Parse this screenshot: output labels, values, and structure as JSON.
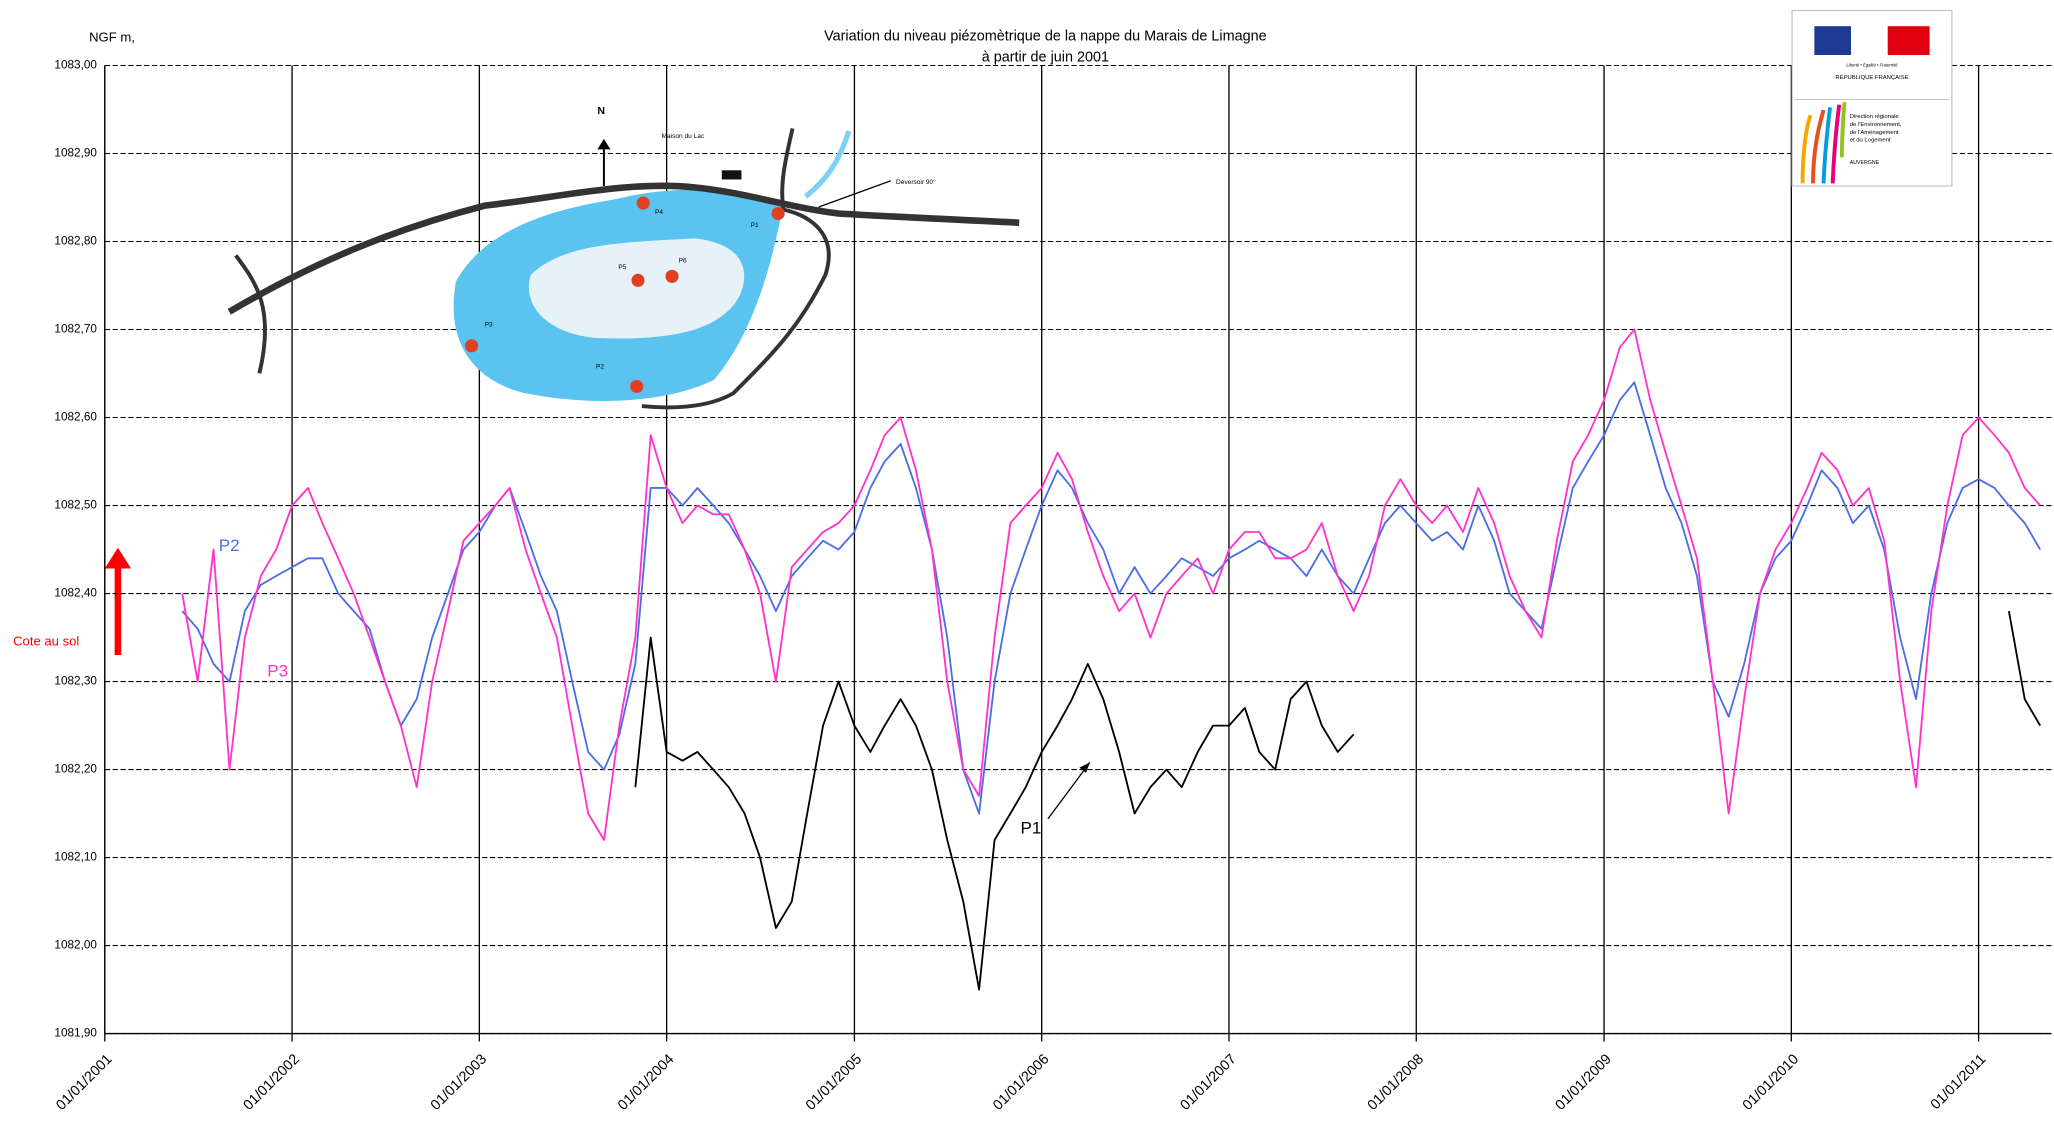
{
  "chart_data": {
    "type": "line",
    "title": "Variation du niveau  piézomètrique de la nappe du Marais de Limagne",
    "subtitle": "à partir  de juin 2001",
    "y_label": "NGF m,",
    "ylim": [
      1081.9,
      1083.0
    ],
    "yticks": [
      {
        "value": 1081.9,
        "label": "1081,90"
      },
      {
        "value": 1082.0,
        "label": "1082,00"
      },
      {
        "value": 1082.1,
        "label": "1082,10"
      },
      {
        "value": 1082.2,
        "label": "1082,20"
      },
      {
        "value": 1082.3,
        "label": "1082,30"
      },
      {
        "value": 1082.4,
        "label": "1082,40"
      },
      {
        "value": 1082.5,
        "label": "1082,50"
      },
      {
        "value": 1082.6,
        "label": "1082,60"
      },
      {
        "value": 1082.7,
        "label": "1082,70"
      },
      {
        "value": 1082.8,
        "label": "1082,80"
      },
      {
        "value": 1082.9,
        "label": "1082,90"
      },
      {
        "value": 1083.0,
        "label": "1083,00"
      }
    ],
    "xlim": [
      "2001-01-01",
      "2011-05-23"
    ],
    "xticks": [
      {
        "value": "2001-01-01",
        "label": "01/01/2001"
      },
      {
        "value": "2002-01-01",
        "label": "01/01/2002"
      },
      {
        "value": "2003-01-01",
        "label": "01/01/2003"
      },
      {
        "value": "2004-01-01",
        "label": "01/01/2004"
      },
      {
        "value": "2005-01-01",
        "label": "01/01/2005"
      },
      {
        "value": "2006-01-01",
        "label": "01/01/2006"
      },
      {
        "value": "2007-01-01",
        "label": "01/01/2007"
      },
      {
        "value": "2008-01-01",
        "label": "01/01/2008"
      },
      {
        "value": "2009-01-01",
        "label": "01/01/2009"
      },
      {
        "value": "2010-01-01",
        "label": "01/01/2010"
      },
      {
        "value": "2011-01-01",
        "label": "01/01/2011"
      }
    ],
    "grid": true,
    "x": [
      "2001-06-01",
      "2001-07-01",
      "2001-08-01",
      "2001-09-01",
      "2001-10-01",
      "2001-11-01",
      "2001-12-01",
      "2002-01-01",
      "2002-02-01",
      "2002-03-01",
      "2002-04-01",
      "2002-05-01",
      "2002-06-01",
      "2002-07-01",
      "2002-08-01",
      "2002-09-01",
      "2002-10-01",
      "2002-11-01",
      "2002-12-01",
      "2003-01-01",
      "2003-02-01",
      "2003-03-01",
      "2003-04-01",
      "2003-05-01",
      "2003-06-01",
      "2003-07-01",
      "2003-08-01",
      "2003-09-01",
      "2003-10-01",
      "2003-11-01",
      "2003-12-01",
      "2004-01-01",
      "2004-02-01",
      "2004-03-01",
      "2004-04-01",
      "2004-05-01",
      "2004-06-01",
      "2004-07-01",
      "2004-08-01",
      "2004-09-01",
      "2004-10-01",
      "2004-11-01",
      "2004-12-01",
      "2005-01-01",
      "2005-02-01",
      "2005-03-01",
      "2005-04-01",
      "2005-05-01",
      "2005-06-01",
      "2005-07-01",
      "2005-08-01",
      "2005-09-01",
      "2005-10-01",
      "2005-11-01",
      "2005-12-01",
      "2006-01-01",
      "2006-02-01",
      "2006-03-01",
      "2006-04-01",
      "2006-05-01",
      "2006-06-01",
      "2006-07-01",
      "2006-08-01",
      "2006-09-01",
      "2006-10-01",
      "2006-11-01",
      "2006-12-01",
      "2007-01-01",
      "2007-02-01",
      "2007-03-01",
      "2007-04-01",
      "2007-05-01",
      "2007-06-01",
      "2007-07-01",
      "2007-08-01",
      "2007-09-01",
      "2007-10-01",
      "2007-11-01",
      "2007-12-01",
      "2008-01-01",
      "2008-02-01",
      "2008-03-01",
      "2008-04-01",
      "2008-05-01",
      "2008-06-01",
      "2008-07-01",
      "2008-08-01",
      "2008-09-01",
      "2008-10-01",
      "2008-11-01",
      "2008-12-01",
      "2009-01-01",
      "2009-02-01",
      "2009-03-01",
      "2009-04-01",
      "2009-05-01",
      "2009-06-01",
      "2009-07-01",
      "2009-08-01",
      "2009-09-01",
      "2009-10-01",
      "2009-11-01",
      "2009-12-01",
      "2010-01-01",
      "2010-02-01",
      "2010-03-01",
      "2010-04-01",
      "2010-05-01",
      "2010-06-01",
      "2010-07-01",
      "2010-08-01",
      "2010-09-01",
      "2010-10-01",
      "2010-11-01",
      "2010-12-01",
      "2011-01-01",
      "2011-02-01",
      "2011-03-01",
      "2011-04-01",
      "2011-05-01"
    ],
    "series": [
      {
        "name": "P2",
        "color": "#4a6fe3",
        "values": [
          1082.38,
          1082.36,
          1082.32,
          1082.3,
          1082.38,
          1082.41,
          1082.42,
          1082.43,
          1082.44,
          1082.44,
          1082.4,
          1082.38,
          1082.36,
          1082.3,
          1082.25,
          1082.28,
          1082.35,
          1082.4,
          1082.45,
          1082.47,
          1082.5,
          1082.52,
          1082.47,
          1082.42,
          1082.38,
          1082.3,
          1082.22,
          1082.2,
          1082.24,
          1082.32,
          1082.52,
          1082.52,
          1082.5,
          1082.52,
          1082.5,
          1082.48,
          1082.45,
          1082.42,
          1082.38,
          1082.42,
          1082.44,
          1082.46,
          1082.45,
          1082.47,
          1082.52,
          1082.55,
          1082.57,
          1082.52,
          1082.45,
          1082.35,
          1082.2,
          1082.15,
          1082.3,
          1082.4,
          1082.45,
          1082.5,
          1082.54,
          1082.52,
          1082.48,
          1082.45,
          1082.4,
          1082.43,
          1082.4,
          1082.42,
          1082.44,
          1082.43,
          1082.42,
          1082.44,
          1082.45,
          1082.46,
          1082.45,
          1082.44,
          1082.42,
          1082.45,
          1082.42,
          1082.4,
          1082.44,
          1082.48,
          1082.5,
          1082.48,
          1082.46,
          1082.47,
          1082.45,
          1082.5,
          1082.46,
          1082.4,
          1082.38,
          1082.36,
          1082.44,
          1082.52,
          1082.55,
          1082.58,
          1082.62,
          1082.64,
          1082.58,
          1082.52,
          1082.48,
          1082.42,
          1082.3,
          1082.26,
          1082.32,
          1082.4,
          1082.44,
          1082.46,
          1082.5,
          1082.54,
          1082.52,
          1082.48,
          1082.5,
          1082.45,
          1082.35,
          1082.28,
          1082.4,
          1082.48,
          1082.52,
          1082.53,
          1082.52,
          1082.5,
          1082.48,
          1082.45
        ]
      },
      {
        "name": "P3",
        "color": "#ff33cc",
        "values": [
          1082.4,
          1082.3,
          1082.45,
          1082.2,
          1082.35,
          1082.42,
          1082.45,
          1082.5,
          1082.52,
          1082.48,
          1082.44,
          1082.4,
          1082.35,
          1082.3,
          1082.25,
          1082.18,
          1082.3,
          1082.38,
          1082.46,
          1082.48,
          1082.5,
          1082.52,
          1082.45,
          1082.4,
          1082.35,
          1082.25,
          1082.15,
          1082.12,
          1082.25,
          1082.35,
          1082.58,
          1082.52,
          1082.48,
          1082.5,
          1082.49,
          1082.49,
          1082.45,
          1082.4,
          1082.3,
          1082.43,
          1082.45,
          1082.47,
          1082.48,
          1082.5,
          1082.54,
          1082.58,
          1082.6,
          1082.54,
          1082.45,
          1082.3,
          1082.2,
          1082.17,
          1082.35,
          1082.48,
          1082.5,
          1082.52,
          1082.56,
          1082.53,
          1082.47,
          1082.42,
          1082.38,
          1082.4,
          1082.35,
          1082.4,
          1082.42,
          1082.44,
          1082.4,
          1082.45,
          1082.47,
          1082.47,
          1082.44,
          1082.44,
          1082.45,
          1082.48,
          1082.42,
          1082.38,
          1082.42,
          1082.5,
          1082.53,
          1082.5,
          1082.48,
          1082.5,
          1082.47,
          1082.52,
          1082.48,
          1082.42,
          1082.38,
          1082.35,
          1082.46,
          1082.55,
          1082.58,
          1082.62,
          1082.68,
          1082.7,
          1082.62,
          1082.56,
          1082.5,
          1082.44,
          1082.3,
          1082.15,
          1082.28,
          1082.4,
          1082.45,
          1082.48,
          1082.52,
          1082.56,
          1082.54,
          1082.5,
          1082.52,
          1082.46,
          1082.3,
          1082.18,
          1082.38,
          1082.5,
          1082.58,
          1082.6,
          1082.58,
          1082.56,
          1082.52,
          1082.5
        ]
      },
      {
        "name": "P1",
        "color": "#000000",
        "values": [
          null,
          null,
          null,
          null,
          null,
          null,
          null,
          null,
          null,
          null,
          null,
          null,
          null,
          null,
          null,
          null,
          null,
          null,
          null,
          null,
          null,
          null,
          null,
          null,
          null,
          null,
          null,
          null,
          null,
          1082.18,
          1082.35,
          1082.22,
          1082.21,
          1082.22,
          1082.2,
          1082.18,
          1082.15,
          1082.1,
          1082.02,
          1082.05,
          1082.15,
          1082.25,
          1082.3,
          1082.25,
          1082.22,
          1082.25,
          1082.28,
          1082.25,
          1082.2,
          1082.12,
          1082.05,
          1081.95,
          1082.12,
          1082.15,
          1082.18,
          1082.22,
          1082.25,
          1082.28,
          1082.32,
          1082.28,
          1082.22,
          1082.15,
          1082.18,
          1082.2,
          1082.18,
          1082.22,
          1082.25,
          1082.25,
          1082.27,
          1082.22,
          1082.2,
          1082.28,
          1082.3,
          1082.25,
          1082.22,
          1082.24,
          null,
          null,
          null,
          null,
          null,
          null,
          null,
          null,
          null,
          null,
          null,
          null,
          null,
          null,
          null,
          null,
          null,
          null,
          null,
          null,
          null,
          null,
          null,
          null,
          null,
          null,
          null,
          null,
          null,
          null,
          null,
          null,
          null,
          null,
          null,
          null,
          null,
          null,
          null,
          null,
          null,
          1082.38,
          1082.28,
          1082.25
        ]
      }
    ],
    "ground_label": "Cote au sol",
    "map": {
      "north": "N",
      "house": "Maison du Lac",
      "weir": "Déversoir 90°",
      "points": [
        "P1",
        "P2",
        "P3",
        "P4",
        "P5",
        "P6"
      ]
    },
    "logo": {
      "motto": "Liberté • Égalité • Fraternité",
      "republic": "RÉPUBLIQUE FRANÇAISE",
      "direction": [
        "Direction régionale",
        "de l'Environnement,",
        "de l'Aménagement",
        "et du Logement"
      ],
      "region": "AUVERGNE"
    }
  }
}
